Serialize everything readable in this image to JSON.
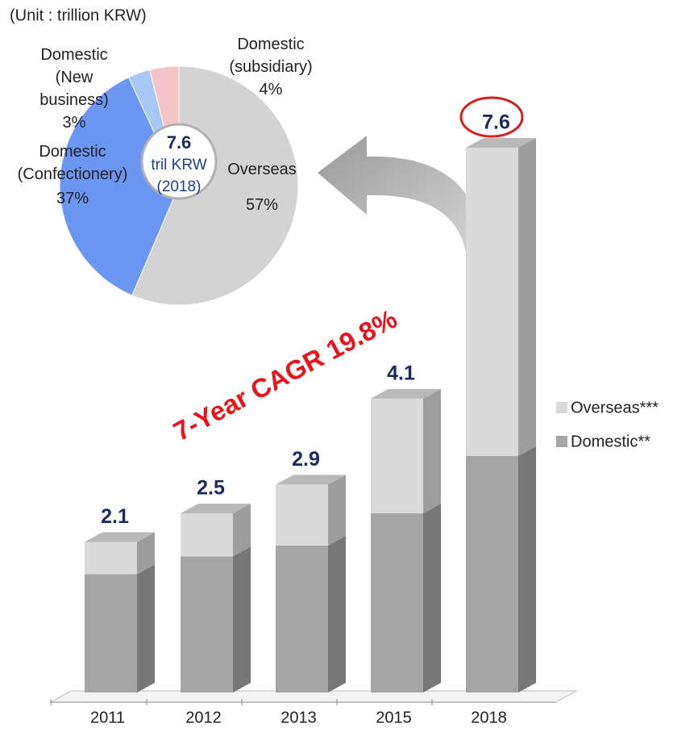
{
  "chart_data": [
    {
      "type": "bar",
      "stacked": true,
      "categories": [
        "2011",
        "2012",
        "2013",
        "2015",
        "2018"
      ],
      "series": [
        {
          "name": "Domestic**",
          "color": "#a5a5a5",
          "values": [
            1.65,
            1.9,
            2.05,
            2.5,
            3.3
          ]
        },
        {
          "name": "Overseas***",
          "color": "#dadada",
          "values": [
            0.45,
            0.6,
            0.85,
            1.6,
            4.3
          ]
        }
      ],
      "totals": [
        2.1,
        2.5,
        2.9,
        4.1,
        7.6
      ],
      "ylim": [
        0,
        7.6
      ],
      "annotation": "7-Year CAGR 19.8%"
    },
    {
      "type": "pie",
      "subtitle": "(Unit : trillion KRW)",
      "categories": [
        "Overseas",
        "Domestic\n(Confectionery)",
        "Domestic\n(New\nbusiness)",
        "Domestic\n(subsidiary)"
      ],
      "values": [
        57,
        37,
        3,
        4
      ],
      "value_labels": [
        "57%",
        "37%",
        "3%",
        "4%"
      ],
      "colors": [
        "#d3d3d3",
        "#6b97f2",
        "#a7c7f5",
        "#f5c4c6"
      ],
      "center_value": "7.6",
      "center_text": [
        "tril KRW",
        "(2018)"
      ]
    }
  ]
}
